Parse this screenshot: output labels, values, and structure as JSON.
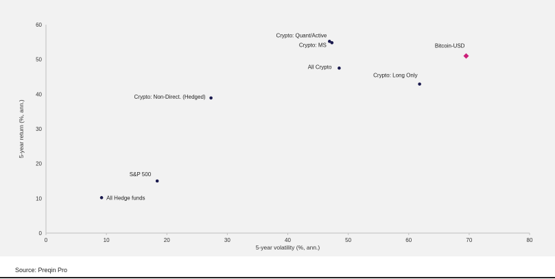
{
  "colors": {
    "background": "#f2f2f2",
    "point": "#1a1a4e",
    "highlight": "#cc1f7a",
    "grid": "#e0e0e0"
  },
  "source": "Source: Preqin Pro",
  "chart_data": {
    "type": "scatter",
    "title": "",
    "xlabel": "5-year volatility (%, ann.)",
    "ylabel": "5-year return (%, ann.)",
    "xlim": [
      0,
      80
    ],
    "ylim": [
      0,
      60
    ],
    "xticks": [
      0,
      10,
      20,
      30,
      40,
      50,
      60,
      70,
      80
    ],
    "yticks": [
      0,
      10,
      20,
      30,
      40,
      50,
      60
    ],
    "grid": false,
    "points": [
      {
        "label": "Crypto: Quant/Active",
        "x": 46.9,
        "y": 55.2,
        "marker": "circle"
      },
      {
        "label": "Crypto: MS",
        "x": 47.3,
        "y": 54.8,
        "marker": "circle"
      },
      {
        "label": "Bitcoin-USD",
        "x": 69.5,
        "y": 51.0,
        "marker": "diamond"
      },
      {
        "label": "All Crypto",
        "x": 48.5,
        "y": 47.5,
        "marker": "circle"
      },
      {
        "label": "Crypto: Long Only",
        "x": 61.8,
        "y": 42.9,
        "marker": "circle"
      },
      {
        "label": "Crypto: Non-Direct. (Hedged)",
        "x": 27.3,
        "y": 38.9,
        "marker": "circle"
      },
      {
        "label": "S&P 500",
        "x": 18.4,
        "y": 15.0,
        "marker": "circle"
      },
      {
        "label": "All Hedge funds",
        "x": 9.2,
        "y": 10.2,
        "marker": "circle"
      }
    ]
  }
}
